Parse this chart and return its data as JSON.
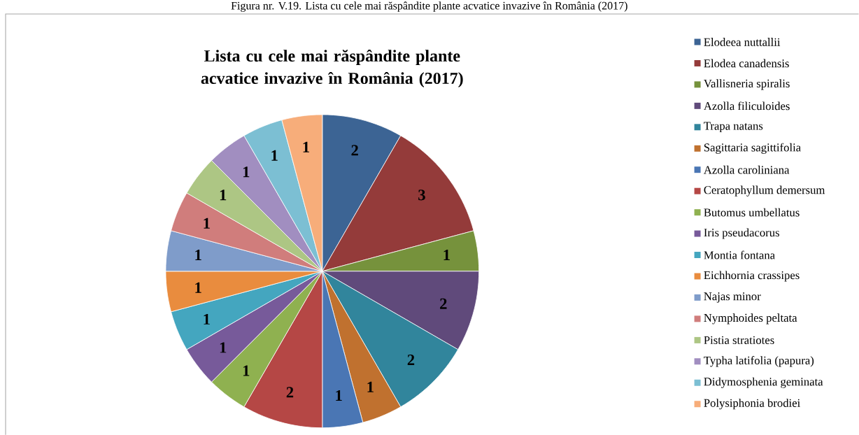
{
  "chart_data": {
    "type": "pie",
    "title": "Lista cu cele mai răspândite plante acvatice invazive în România (2017)",
    "annotations": [
      "Figura nr. V.19. Lista cu cele mai răspândite plante acvatice invazive în România (2017)"
    ],
    "categories": [
      "Elodeea nuttallii",
      "Elodea canadensis",
      "Vallisneria spiralis",
      "Azolla filiculoides",
      "Trapa natans",
      "Sagittaria sagittifolia",
      "Azolla caroliniana",
      "Ceratophyllum demersum",
      "Butomus umbellatus",
      "Iris pseudacorus",
      "Montia fontana",
      "Eichhornia crassipes",
      "Najas minor",
      "Nymphoides peltata",
      "Pistia stratiotes",
      "Typha latifolia (papura)",
      "Didymosphenia geminata",
      "Polysiphonia brodiei"
    ],
    "values": [
      2,
      3,
      1,
      2,
      2,
      1,
      1,
      2,
      1,
      1,
      1,
      1,
      1,
      1,
      1,
      1,
      1,
      1
    ],
    "colors": [
      "#3c6494",
      "#943b3a",
      "#76923c",
      "#604a7b",
      "#31859c",
      "#c0712f",
      "#4a76b4",
      "#b54745",
      "#8fb150",
      "#775a9a",
      "#44a6bf",
      "#e98c3e",
      "#7f9cca",
      "#d07d7c",
      "#adc684",
      "#a18ec0",
      "#7cbfd3",
      "#f7ad7a"
    ],
    "data_labels": true,
    "legend": "right"
  }
}
